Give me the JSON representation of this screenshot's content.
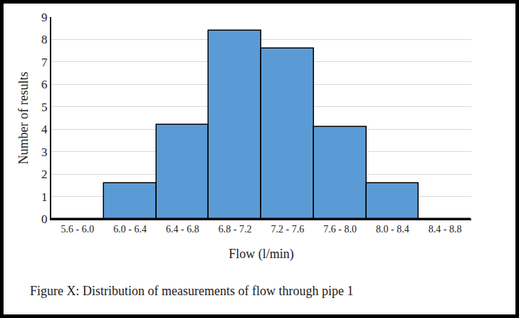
{
  "chart_data": {
    "type": "bar",
    "title": "Figure X: Distribution of measurements of flow through pipe 1",
    "x_label": "Flow (l/min)",
    "y_label": "Number of results",
    "categories": [
      "5.6 - 6.0",
      "6.0 - 6.4",
      "6.4 - 6.8",
      "6.8 - 7.2",
      "7.2 - 7.6",
      "7.6 - 8.0",
      "8.0 - 8.4",
      "8.4 - 8.8"
    ],
    "values": [
      0,
      1.6,
      4.2,
      8.4,
      7.6,
      4.1,
      1.6,
      0
    ],
    "color": "#5b9bd5",
    "ylim": [
      0,
      9
    ],
    "yticks": [
      0,
      1,
      2,
      3,
      4,
      5,
      6,
      7,
      8,
      9
    ],
    "grid": true
  }
}
